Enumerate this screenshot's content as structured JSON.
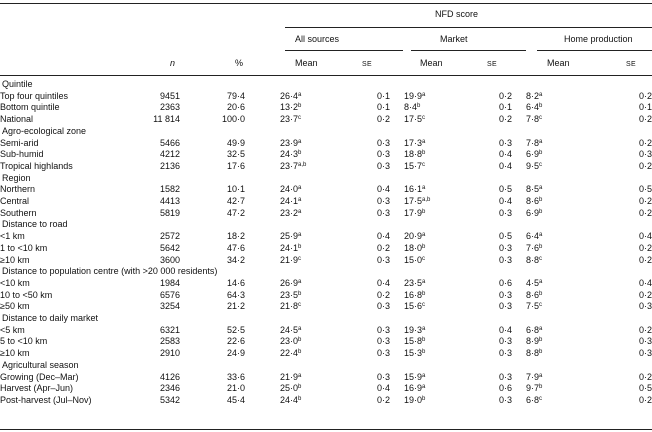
{
  "header": {
    "group": "NFD score",
    "sub_groups": [
      "All sources",
      "Market",
      "Home production"
    ],
    "col_n": "n",
    "col_pct": "%",
    "col_mean": "Mean",
    "col_se": "SE"
  },
  "sections": [
    {
      "title": "Quintile",
      "rows": [
        {
          "label": "Top four quintiles",
          "n": "9451",
          "pct": "79·4",
          "all_mean": "26·4",
          "all_sup": "a",
          "all_se": "0·1",
          "mkt_mean": "19·9",
          "mkt_sup": "a",
          "mkt_se": "0·2",
          "home_mean": "8·2",
          "home_sup": "a",
          "home_se": "0·2"
        },
        {
          "label": "Bottom quintile",
          "n": "2363",
          "pct": "20·6",
          "all_mean": "13·2",
          "all_sup": "b",
          "all_se": "0·1",
          "mkt_mean": "8·4",
          "mkt_sup": "b",
          "mkt_se": "0·1",
          "home_mean": "6·4",
          "home_sup": "b",
          "home_se": "0·1"
        },
        {
          "label": "National",
          "n": "11 814",
          "pct": "100·0",
          "all_mean": "23·7",
          "all_sup": "c",
          "all_se": "0·2",
          "mkt_mean": "17·5",
          "mkt_sup": "c",
          "mkt_se": "0·2",
          "home_mean": "7·8",
          "home_sup": "c",
          "home_se": "0·2"
        }
      ]
    },
    {
      "title": "Agro-ecological zone",
      "rows": [
        {
          "label": "Semi-arid",
          "n": "5466",
          "pct": "49·9",
          "all_mean": "23·9",
          "all_sup": "a",
          "all_se": "0·3",
          "mkt_mean": "17·3",
          "mkt_sup": "a",
          "mkt_se": "0·3",
          "home_mean": "7·8",
          "home_sup": "a",
          "home_se": "0·2"
        },
        {
          "label": "Sub-humid",
          "n": "4212",
          "pct": "32·5",
          "all_mean": "24·3",
          "all_sup": "b",
          "all_se": "0·3",
          "mkt_mean": "18·8",
          "mkt_sup": "b",
          "mkt_se": "0·4",
          "home_mean": "6·9",
          "home_sup": "b",
          "home_se": "0·3"
        },
        {
          "label": "Tropical highlands",
          "n": "2136",
          "pct": "17·6",
          "all_mean": "23·7",
          "all_sup": "a,b",
          "all_se": "0·3",
          "mkt_mean": "15·7",
          "mkt_sup": "c",
          "mkt_se": "0·4",
          "home_mean": "9·5",
          "home_sup": "c",
          "home_se": "0·2"
        }
      ]
    },
    {
      "title": "Region",
      "rows": [
        {
          "label": "Northern",
          "n": "1582",
          "pct": "10·1",
          "all_mean": "24·0",
          "all_sup": "a",
          "all_se": "0·4",
          "mkt_mean": "16·1",
          "mkt_sup": "a",
          "mkt_se": "0·5",
          "home_mean": "8·5",
          "home_sup": "a",
          "home_se": "0·5"
        },
        {
          "label": "Central",
          "n": "4413",
          "pct": "42·7",
          "all_mean": "24·1",
          "all_sup": "a",
          "all_se": "0·3",
          "mkt_mean": "17·5",
          "mkt_sup": "a,b",
          "mkt_se": "0·4",
          "home_mean": "8·6",
          "home_sup": "b",
          "home_se": "0·2"
        },
        {
          "label": "Southern",
          "n": "5819",
          "pct": "47·2",
          "all_mean": "23·2",
          "all_sup": "a",
          "all_se": "0·3",
          "mkt_mean": "17·9",
          "mkt_sup": "b",
          "mkt_se": "0·3",
          "home_mean": "6·9",
          "home_sup": "b",
          "home_se": "0·2"
        }
      ]
    },
    {
      "title": "Distance to road",
      "rows": [
        {
          "label": "<1 km",
          "n": "2572",
          "pct": "18·2",
          "all_mean": "25·9",
          "all_sup": "a",
          "all_se": "0·4",
          "mkt_mean": "20·9",
          "mkt_sup": "a",
          "mkt_se": "0·5",
          "home_mean": "6·4",
          "home_sup": "a",
          "home_se": "0·4"
        },
        {
          "label": "1 to <10 km",
          "n": "5642",
          "pct": "47·6",
          "all_mean": "24·1",
          "all_sup": "b",
          "all_se": "0·2",
          "mkt_mean": "18·0",
          "mkt_sup": "b",
          "mkt_se": "0·3",
          "home_mean": "7·6",
          "home_sup": "b",
          "home_se": "0·2"
        },
        {
          "label": "≥10 km",
          "n": "3600",
          "pct": "34·2",
          "all_mean": "21·9",
          "all_sup": "c",
          "all_se": "0·3",
          "mkt_mean": "15·0",
          "mkt_sup": "c",
          "mkt_se": "0·3",
          "home_mean": "8·8",
          "home_sup": "c",
          "home_se": "0·2"
        }
      ]
    },
    {
      "title": "Distance to population centre (with >20 000 residents)",
      "rows": [
        {
          "label": "<10 km",
          "n": "1984",
          "pct": "14·6",
          "all_mean": "26·9",
          "all_sup": "a",
          "all_se": "0·4",
          "mkt_mean": "23·5",
          "mkt_sup": "a",
          "mkt_se": "0·6",
          "home_mean": "4·5",
          "home_sup": "a",
          "home_se": "0·4"
        },
        {
          "label": "10 to <50 km",
          "n": "6576",
          "pct": "64·3",
          "all_mean": "23·5",
          "all_sup": "b",
          "all_se": "0·2",
          "mkt_mean": "16·8",
          "mkt_sup": "b",
          "mkt_se": "0·3",
          "home_mean": "8·6",
          "home_sup": "b",
          "home_se": "0·2"
        },
        {
          "label": "≥50 km",
          "n": "3254",
          "pct": "21·2",
          "all_mean": "21·8",
          "all_sup": "c",
          "all_se": "0·3",
          "mkt_mean": "15·6",
          "mkt_sup": "c",
          "mkt_se": "0·3",
          "home_mean": "7·5",
          "home_sup": "c",
          "home_se": "0·3"
        }
      ]
    },
    {
      "title": "Distance to daily market",
      "rows": [
        {
          "label": "<5 km",
          "n": "6321",
          "pct": "52·5",
          "all_mean": "24·5",
          "all_sup": "a",
          "all_se": "0·3",
          "mkt_mean": "19·3",
          "mkt_sup": "a",
          "mkt_se": "0·4",
          "home_mean": "6·8",
          "home_sup": "a",
          "home_se": "0·2"
        },
        {
          "label": "5 to <10 km",
          "n": "2583",
          "pct": "22·6",
          "all_mean": "23·0",
          "all_sup": "b",
          "all_se": "0·3",
          "mkt_mean": "15·8",
          "mkt_sup": "b",
          "mkt_se": "0·3",
          "home_mean": "8·9",
          "home_sup": "b",
          "home_se": "0·3"
        },
        {
          "label": "≥10 km",
          "n": "2910",
          "pct": "24·9",
          "all_mean": "22·4",
          "all_sup": "b",
          "all_se": "0·3",
          "mkt_mean": "15·3",
          "mkt_sup": "b",
          "mkt_se": "0·3",
          "home_mean": "8·8",
          "home_sup": "b",
          "home_se": "0·3"
        }
      ]
    },
    {
      "title": "Agricultural season",
      "rows": [
        {
          "label": "Growing (Dec–Mar)",
          "n": "4126",
          "pct": "33·6",
          "all_mean": "21·9",
          "all_sup": "a",
          "all_se": "0·3",
          "mkt_mean": "15·9",
          "mkt_sup": "a",
          "mkt_se": "0·3",
          "home_mean": "7·9",
          "home_sup": "a",
          "home_se": "0·2"
        },
        {
          "label": "Harvest (Apr–Jun)",
          "n": "2346",
          "pct": "21·0",
          "all_mean": "25·0",
          "all_sup": "b",
          "all_se": "0·4",
          "mkt_mean": "16·9",
          "mkt_sup": "a",
          "mkt_se": "0·6",
          "home_mean": "9·7",
          "home_sup": "b",
          "home_se": "0·5"
        },
        {
          "label": "Post-harvest (Jul–Nov)",
          "n": "5342",
          "pct": "45·4",
          "all_mean": "24·4",
          "all_sup": "b",
          "all_se": "0·2",
          "mkt_mean": "19·0",
          "mkt_sup": "b",
          "mkt_se": "0·3",
          "home_mean": "6·8",
          "home_sup": "c",
          "home_se": "0·2"
        }
      ]
    }
  ]
}
